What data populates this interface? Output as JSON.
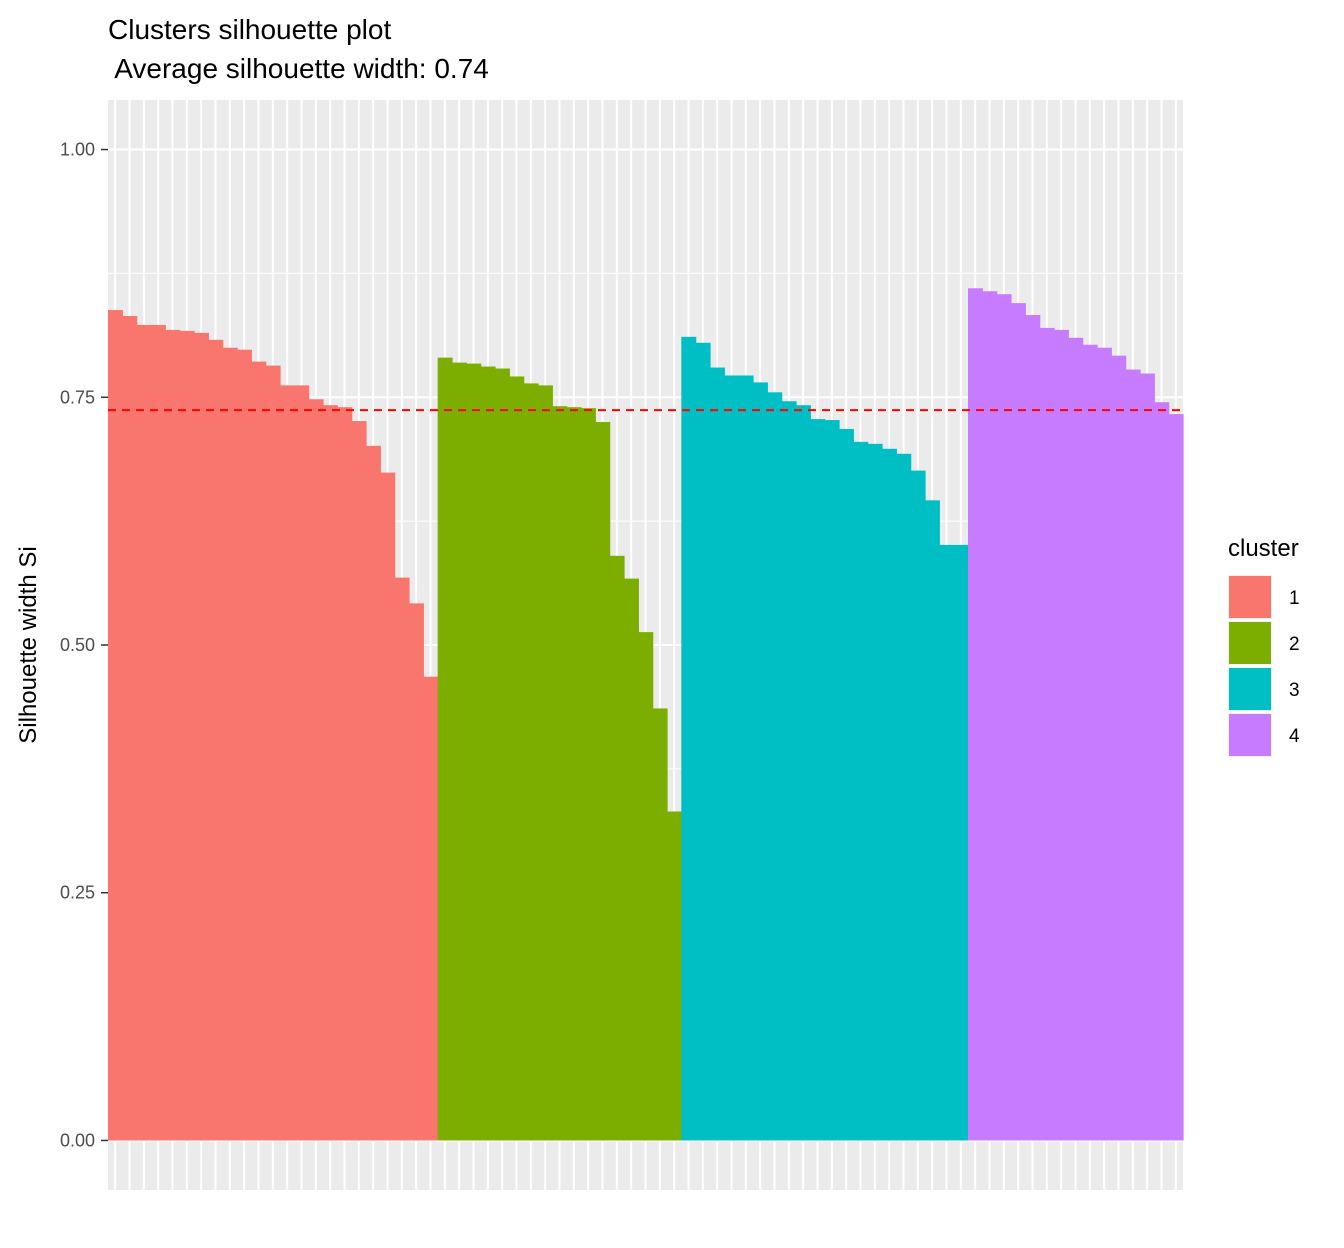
{
  "chart_data": {
    "type": "bar",
    "title": "Clusters silhouette plot",
    "subtitle": " Average silhouette width: 0.74",
    "xlabel": "",
    "ylabel": "Silhouette width Si",
    "ylim": [
      -0.05,
      1.05
    ],
    "yticks": [
      0,
      0.25,
      0.5,
      0.75,
      1
    ],
    "ytick_labels": [
      "0.00",
      "0.25",
      "0.50",
      "0.75",
      "1.00"
    ],
    "average_line": {
      "value": 0.737,
      "color": "#ff0000",
      "style": "dashed"
    },
    "grid": true,
    "legend": {
      "title": "cluster",
      "placement": "right"
    },
    "series": [
      {
        "name": "1",
        "color": "#F8766D",
        "values": [
          0.838,
          0.832,
          0.823,
          0.823,
          0.818,
          0.817,
          0.815,
          0.808,
          0.8,
          0.798,
          0.786,
          0.782,
          0.762,
          0.762,
          0.748,
          0.742,
          0.74,
          0.726,
          0.701,
          0.674,
          0.568,
          0.542,
          0.468
        ]
      },
      {
        "name": "2",
        "color": "#7CAE00",
        "values": [
          0.79,
          0.785,
          0.784,
          0.781,
          0.779,
          0.771,
          0.764,
          0.762,
          0.741,
          0.74,
          0.739,
          0.725,
          0.59,
          0.567,
          0.513,
          0.436,
          0.332
        ]
      },
      {
        "name": "3",
        "color": "#00BFC4",
        "values": [
          0.811,
          0.805,
          0.78,
          0.772,
          0.772,
          0.765,
          0.755,
          0.746,
          0.742,
          0.728,
          0.727,
          0.718,
          0.705,
          0.703,
          0.698,
          0.693,
          0.676,
          0.646,
          0.601,
          0.601
        ]
      },
      {
        "name": "4",
        "color": "#C77CFF",
        "values": [
          0.86,
          0.857,
          0.854,
          0.845,
          0.833,
          0.82,
          0.818,
          0.81,
          0.803,
          0.8,
          0.792,
          0.778,
          0.774,
          0.745,
          0.733
        ]
      }
    ]
  }
}
